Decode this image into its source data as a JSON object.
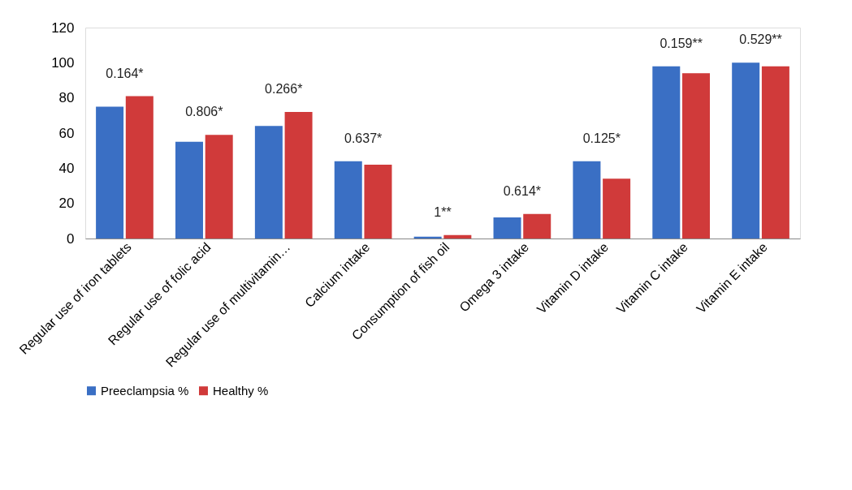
{
  "chart_data": {
    "type": "bar",
    "categories": [
      "Regular use of iron tablets",
      "Regular use of folic acid",
      "Regular use of multivitamin…",
      "Calcium intake",
      "Consumption of fish oil",
      "Omega 3 intake",
      "Vitamin D intake",
      "Vitamin C intake",
      "Vitamin E intake"
    ],
    "series": [
      {
        "name": "Preeclampsia %",
        "color": "#3a6fc4",
        "values": [
          75,
          55,
          64,
          44,
          1,
          12,
          44,
          98,
          100
        ]
      },
      {
        "name": "Healthy %",
        "color": "#d03a3a",
        "values": [
          81,
          59,
          72,
          42,
          2,
          14,
          34,
          94,
          98
        ]
      }
    ],
    "ylim": [
      0,
      120
    ],
    "yticks": [
      0,
      20,
      40,
      60,
      80,
      100,
      120
    ],
    "grid": false,
    "legend": "bottom",
    "annotations": [
      "0.164*",
      "0.806*",
      "0.266*",
      "0.637*",
      "1**",
      "0.614*",
      "0.125*",
      "0.159**",
      "0.529**"
    ]
  }
}
